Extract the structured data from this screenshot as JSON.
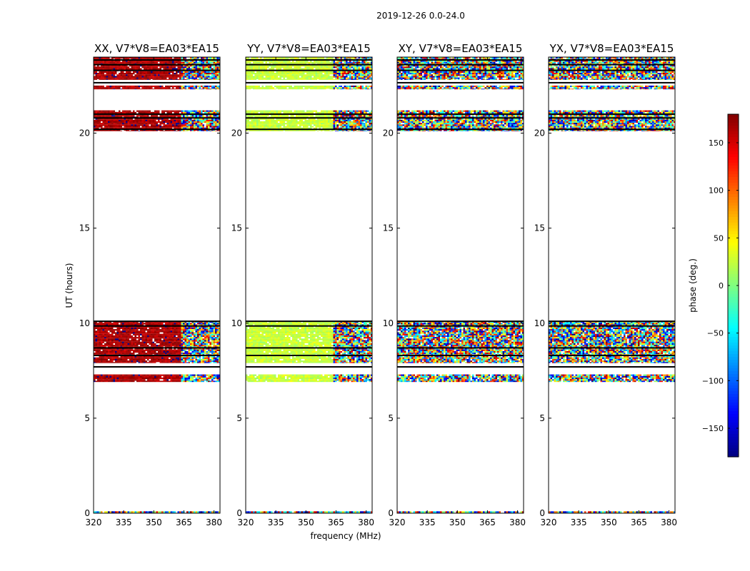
{
  "chart_data": {
    "type": "heatmap",
    "title": "2019-12-26 0.0-24.0",
    "xlabel": "frequency (MHz)",
    "ylabel": "UT (hours)",
    "xlim": [
      320,
      383
    ],
    "ylim": [
      0,
      24
    ],
    "xticks": [
      "320",
      "335",
      "350",
      "365",
      "380"
    ],
    "yticks": [
      "0",
      "5",
      "10",
      "15",
      "20"
    ],
    "colorbar": {
      "label": "phase (deg.)",
      "range": [
        -180,
        180
      ],
      "ticks": [
        "150",
        "100",
        "50",
        "0",
        "−50",
        "−100",
        "−150"
      ],
      "tick_values": [
        150,
        100,
        50,
        0,
        -50,
        -100,
        -150
      ]
    },
    "panels": [
      {
        "title": "XX, V7*V8=EA03*EA15",
        "polarization": "XX",
        "coherent_phase_deg": 165,
        "coherent_spread_deg": 22
      },
      {
        "title": "YY, V7*V8=EA03*EA15",
        "polarization": "YY",
        "coherent_phase_deg": 25,
        "coherent_spread_deg": 22
      },
      {
        "title": "XY, V7*V8=EA03*EA15",
        "polarization": "XY",
        "coherent_phase_deg": null,
        "coherent_spread_deg": 180
      },
      {
        "title": "YX, V7*V8=EA03*EA15",
        "polarization": "YX",
        "coherent_phase_deg": null,
        "coherent_spread_deg": 180
      }
    ],
    "coherent_channel_range_mhz": [
      320,
      363
    ],
    "data_time_ranges_hours": [
      [
        0.0,
        0.1
      ],
      [
        6.9,
        7.3
      ],
      [
        7.9,
        10.1
      ],
      [
        20.1,
        21.2
      ],
      [
        22.3,
        22.5
      ],
      [
        22.8,
        24.0
      ]
    ],
    "gap_lines_hours": [
      7.7,
      8.3,
      8.7,
      9.85,
      10.1,
      20.2,
      20.8,
      21.0,
      22.65,
      23.3,
      23.6,
      23.85
    ]
  }
}
